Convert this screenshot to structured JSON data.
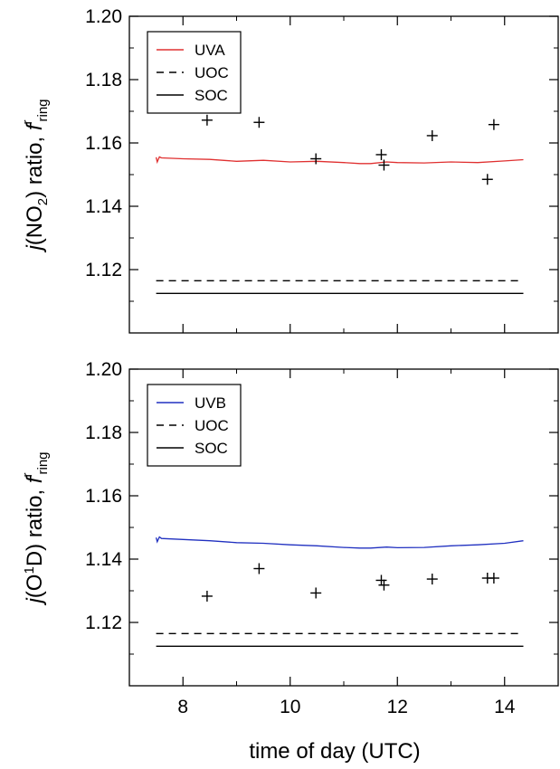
{
  "figure": {
    "xlabel": "time of day (UTC)"
  },
  "chart_data": [
    {
      "type": "line",
      "ylabel": {
        "pre": "j",
        "mid": "(NO",
        "sub": "2",
        "post": ") ratio, ",
        "f": "f",
        "sup": "r",
        "ringsub": "ring"
      },
      "xlim": [
        7,
        15
      ],
      "ylim": [
        1.1,
        1.2
      ],
      "xticks": [
        8,
        10,
        12,
        14
      ],
      "yticks": [
        "1.12",
        "1.14",
        "1.16",
        "1.18",
        "1.20"
      ],
      "series": [
        {
          "name": "UVA",
          "style": "solid",
          "color": "#e03030",
          "x": [
            7.5,
            7.52,
            7.56,
            7.6,
            8.0,
            8.5,
            9.0,
            9.5,
            10.0,
            10.5,
            11.0,
            11.3,
            11.5,
            11.8,
            12.0,
            12.5,
            13.0,
            13.5,
            14.0,
            14.35
          ],
          "y": [
            1.1555,
            1.154,
            1.1556,
            1.1553,
            1.155,
            1.1548,
            1.1542,
            1.1545,
            1.154,
            1.1542,
            1.1538,
            1.1535,
            1.1535,
            1.154,
            1.1538,
            1.1537,
            1.154,
            1.1538,
            1.1543,
            1.1547
          ]
        },
        {
          "name": "UOC",
          "style": "dashed",
          "color": "#000000",
          "x": [
            7.5,
            14.35
          ],
          "y": [
            1.1165,
            1.1165
          ]
        },
        {
          "name": "SOC",
          "style": "solid",
          "color": "#000000",
          "x": [
            7.5,
            14.35
          ],
          "y": [
            1.1125,
            1.1125
          ]
        }
      ],
      "points": {
        "marker": "+",
        "x": [
          8.45,
          9.42,
          10.48,
          11.7,
          11.75,
          12.65,
          13.68,
          13.8
        ],
        "y": [
          1.1672,
          1.1665,
          1.155,
          1.1563,
          1.153,
          1.1623,
          1.1485,
          1.1658
        ]
      },
      "legend": {
        "position": "top-left",
        "entries": [
          "UVA",
          "UOC",
          "SOC"
        ]
      }
    },
    {
      "type": "line",
      "ylabel": {
        "pre": "j",
        "mid": "(O",
        "sup1": "1",
        "mid2": "D) ratio, ",
        "f": "f",
        "sup": "r",
        "ringsub": "ring"
      },
      "xlim": [
        7,
        15
      ],
      "ylim": [
        1.1,
        1.2
      ],
      "xticks": [
        8,
        10,
        12,
        14
      ],
      "yticks": [
        "1.12",
        "1.14",
        "1.16",
        "1.18",
        "1.20"
      ],
      "series": [
        {
          "name": "UVB",
          "style": "solid",
          "color": "#2030c0",
          "x": [
            7.5,
            7.52,
            7.56,
            7.6,
            8.0,
            8.5,
            9.0,
            9.5,
            10.0,
            10.5,
            11.0,
            11.3,
            11.5,
            11.8,
            12.0,
            12.5,
            13.0,
            13.5,
            14.0,
            14.35
          ],
          "y": [
            1.1468,
            1.1455,
            1.147,
            1.1465,
            1.1462,
            1.1458,
            1.1452,
            1.145,
            1.1445,
            1.1442,
            1.1437,
            1.1435,
            1.1435,
            1.1438,
            1.1436,
            1.1437,
            1.1442,
            1.1445,
            1.145,
            1.1458
          ]
        },
        {
          "name": "UOC",
          "style": "dashed",
          "color": "#000000",
          "x": [
            7.5,
            14.35
          ],
          "y": [
            1.1165,
            1.1165
          ]
        },
        {
          "name": "SOC",
          "style": "solid",
          "color": "#000000",
          "x": [
            7.5,
            14.35
          ],
          "y": [
            1.1125,
            1.1125
          ]
        }
      ],
      "points": {
        "marker": "+",
        "x": [
          8.45,
          9.42,
          10.48,
          11.7,
          11.75,
          12.65,
          13.68,
          13.8
        ],
        "y": [
          1.1283,
          1.137,
          1.1293,
          1.1333,
          1.1318,
          1.1337,
          1.134,
          1.134
        ]
      },
      "legend": {
        "position": "top-left",
        "entries": [
          "UVB",
          "UOC",
          "SOC"
        ]
      }
    }
  ]
}
